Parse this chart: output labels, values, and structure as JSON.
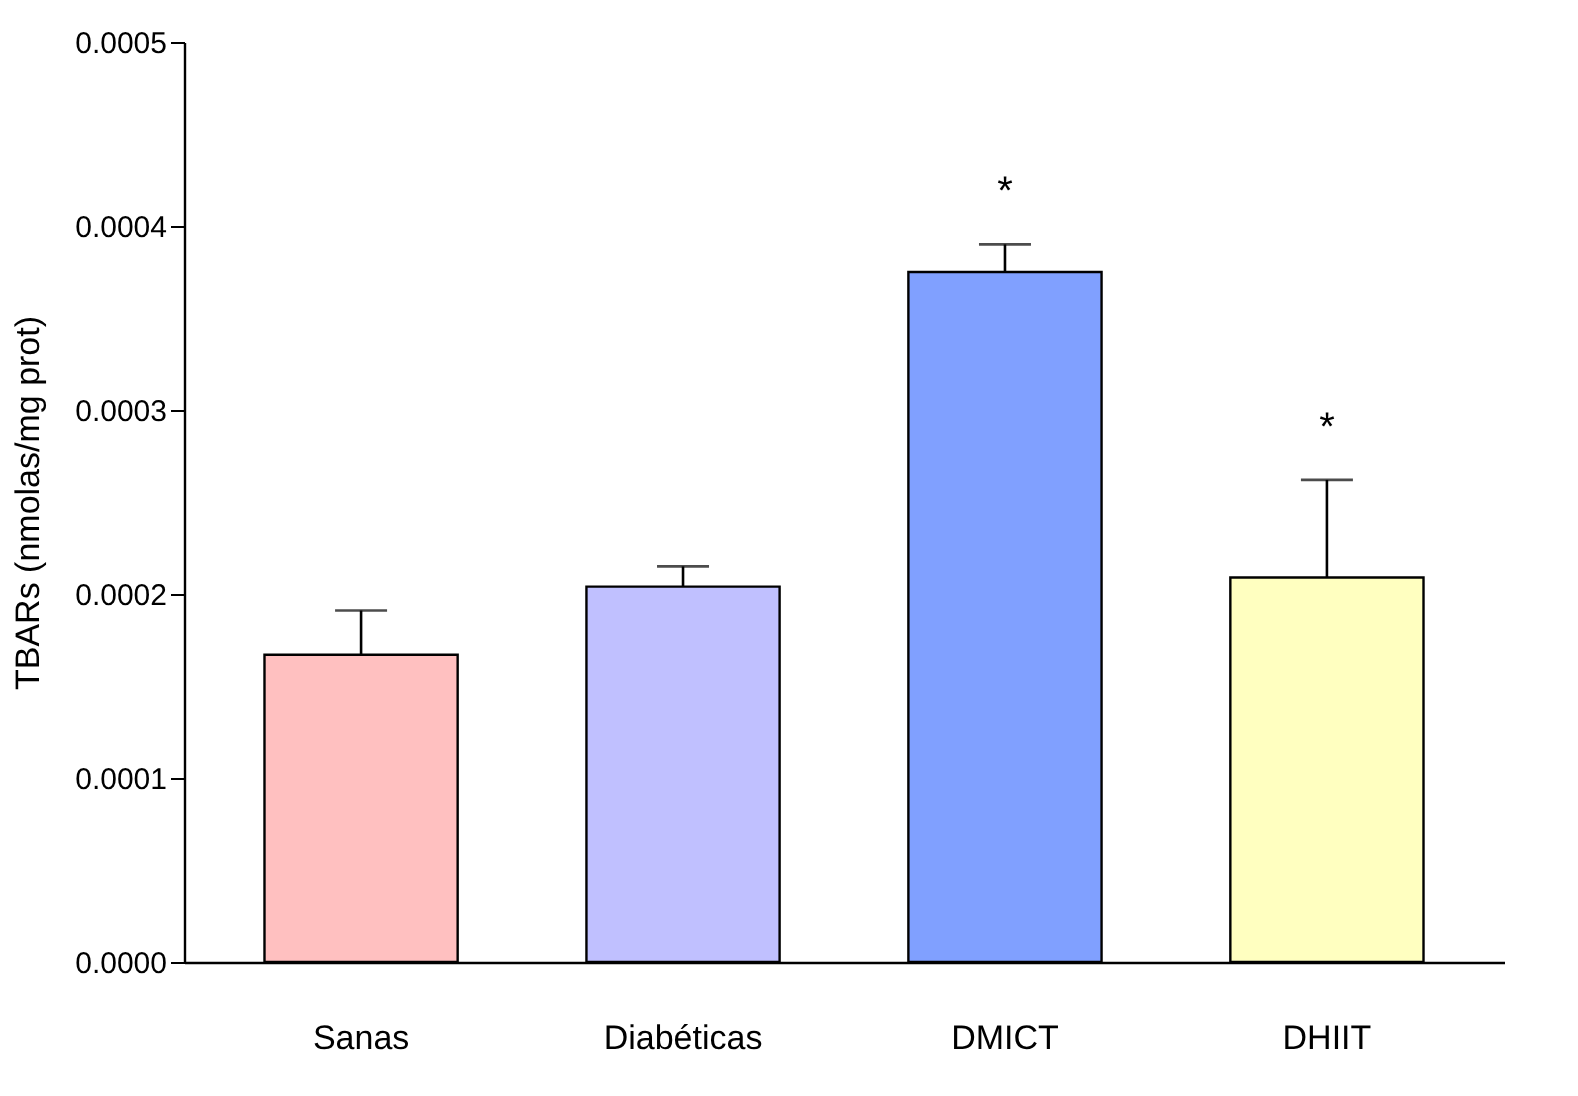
{
  "chart_data": {
    "type": "bar",
    "ylabel": "TBARs (nmolas/mg prot)",
    "categories": [
      "Sanas",
      "Diabéticas",
      "DMICT",
      "DHIIT"
    ],
    "values": [
      0.000167,
      0.000204,
      0.000375,
      0.000209
    ],
    "colors": [
      "#ffc0c0",
      "#c0c0ff",
      "#80a0ff",
      "#ffffc0"
    ],
    "errors": [
      [
        0.000167,
        0.000191
      ],
      [
        0.000204,
        0.000215
      ],
      [
        0.000375,
        0.00039
      ],
      [
        0.000209,
        0.000262
      ]
    ],
    "ylim": [
      0,
      0.0005
    ],
    "yticks": [
      {
        "value": 0,
        "label": "0.0000"
      },
      {
        "value": 0.0001,
        "label": "0.0001"
      },
      {
        "value": 0.0002,
        "label": "0.0002"
      },
      {
        "value": 0.0003,
        "label": "0.0003"
      },
      {
        "value": 0.0004,
        "label": "0.0004"
      },
      {
        "value": 0.0005,
        "label": "0.0005"
      }
    ],
    "value_labels": [
      null,
      null,
      "*",
      "*"
    ],
    "grid": false
  }
}
